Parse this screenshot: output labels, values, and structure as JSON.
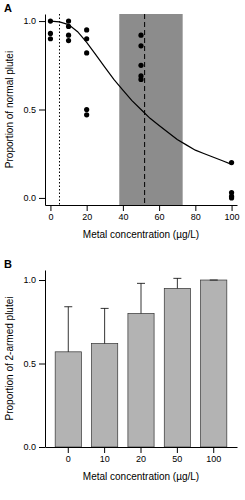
{
  "chart_data": [
    {
      "type": "scatter",
      "title": "A",
      "x_label": "Metal concentration (µg/L)",
      "y_label": "Proportion of normal plutei",
      "xlim": [
        -3,
        103
      ],
      "ylim": [
        -0.04,
        1.04
      ],
      "xticks": [
        0,
        20,
        40,
        60,
        80,
        100
      ],
      "yticks": [
        {
          "value": 0,
          "label": "0.0"
        },
        {
          "value": 0.5,
          "label": "0.5"
        },
        {
          "value": 1,
          "label": "1.0"
        }
      ],
      "grid": false,
      "shaded_range": {
        "from": 38,
        "to": 73,
        "color": "#8c8c8c"
      },
      "reference_lines": [
        {
          "value": 5,
          "line_style": "dotted"
        },
        {
          "value": 52,
          "line_style": "dashed"
        }
      ],
      "series": [
        {
          "type": "scatter",
          "marker": "circle",
          "color": "#000000",
          "x": [
            0,
            0,
            0,
            10,
            10,
            10,
            10,
            20,
            20,
            20,
            20,
            20,
            50,
            50,
            50,
            50,
            50,
            100,
            100,
            100,
            100
          ],
          "values": [
            1.0,
            0.93,
            0.9,
            1.0,
            0.97,
            0.92,
            0.89,
            0.95,
            0.9,
            0.82,
            0.5,
            0.47,
            0.92,
            0.86,
            0.75,
            0.69,
            0.67,
            0.2,
            0.03,
            0.01,
            0.0
          ]
        },
        {
          "type": "line",
          "line_style": "solid",
          "color": "#000000",
          "x": [
            0,
            5,
            10,
            15,
            20,
            25,
            30,
            35,
            40,
            45,
            50,
            55,
            60,
            65,
            70,
            75,
            80,
            85,
            90,
            95,
            100
          ],
          "values": [
            1.0,
            0.995,
            0.98,
            0.94,
            0.88,
            0.81,
            0.74,
            0.67,
            0.61,
            0.55,
            0.5,
            0.45,
            0.41,
            0.37,
            0.33,
            0.3,
            0.27,
            0.25,
            0.23,
            0.21,
            0.19
          ]
        }
      ]
    },
    {
      "type": "bar",
      "title": "B",
      "x_label": "Metal concentration (µg/L)",
      "y_label": "Proportion of 2-armed plutei",
      "categories": [
        "0",
        "10",
        "20",
        "50",
        "100"
      ],
      "values": [
        0.57,
        0.62,
        0.8,
        0.95,
        1.0
      ],
      "errors": [
        0.27,
        0.21,
        0.18,
        0.06,
        0
      ],
      "color": "#b3b3b3",
      "ylim": [
        0,
        1.06
      ],
      "yticks": [
        {
          "value": 0,
          "label": "0.0"
        },
        {
          "value": 0.5,
          "label": "0.5"
        },
        {
          "value": 1,
          "label": "1.0"
        }
      ],
      "grid": false
    }
  ]
}
